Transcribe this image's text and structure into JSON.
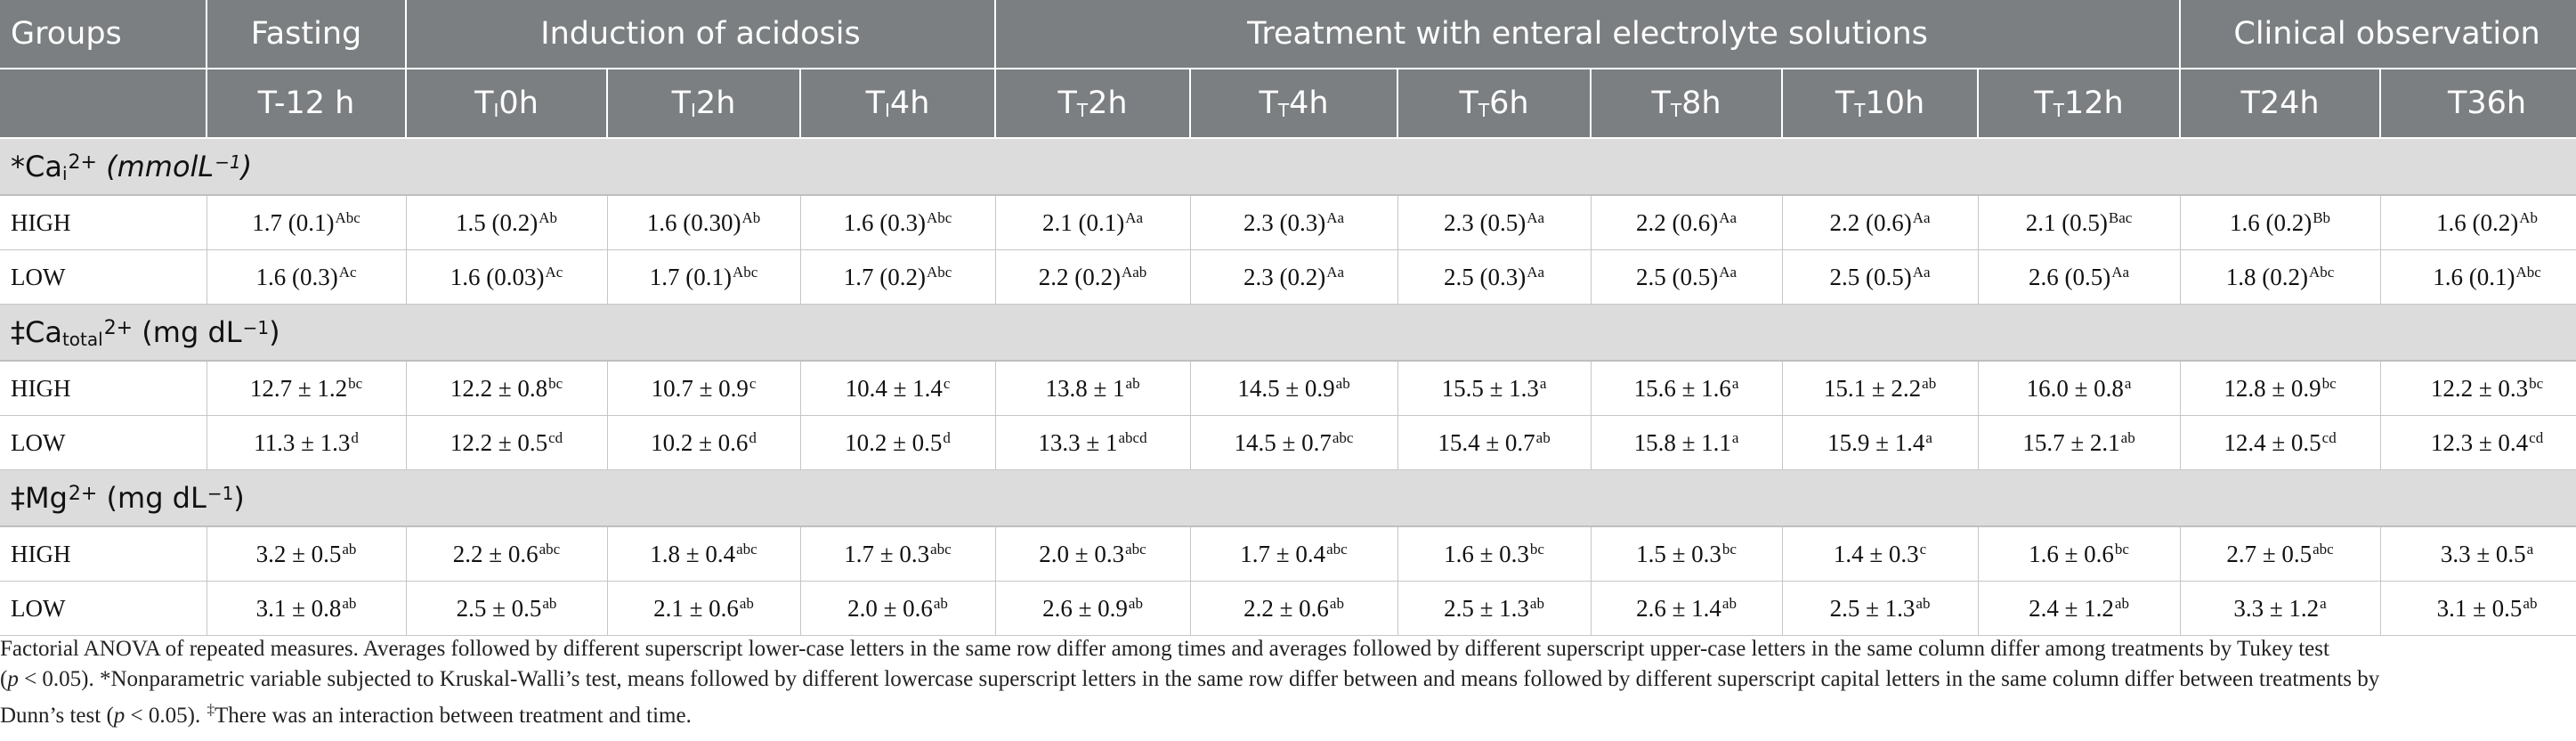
{
  "header": {
    "groups_label": "Groups",
    "phases": [
      "Fasting",
      "Induction of acidosis",
      "Treatment with enteral electrolyte solutions",
      "Clinical observation"
    ],
    "times": [
      {
        "main": "T-12 h",
        "sub": ""
      },
      {
        "main": "T",
        "sub": "I",
        "rest": "0h"
      },
      {
        "main": "T",
        "sub": "I",
        "rest": "2h"
      },
      {
        "main": "T",
        "sub": "I",
        "rest": "4h"
      },
      {
        "main": "T",
        "sub": "T",
        "rest": "2h"
      },
      {
        "main": "T",
        "sub": "T",
        "rest": "4h"
      },
      {
        "main": "T",
        "sub": "T",
        "rest": "6h"
      },
      {
        "main": "T",
        "sub": "T",
        "rest": "8h"
      },
      {
        "main": "T",
        "sub": "T",
        "rest": "10h"
      },
      {
        "main": "T",
        "sub": "T",
        "rest": "12h"
      },
      {
        "main": "T24h",
        "sub": ""
      },
      {
        "main": "T36h",
        "sub": ""
      }
    ]
  },
  "sections": [
    {
      "title_prefix": "*Ca",
      "title_sub": "i",
      "title_sup": "2+",
      "title_unit": " (mmolL",
      "title_unit_sup": "−1",
      "title_unit_end": ")",
      "rows": [
        {
          "group": "HIGH",
          "cells": [
            {
              "v": "1.7 (0.1)",
              "s": "Abc"
            },
            {
              "v": "1.5 (0.2)",
              "s": "Ab"
            },
            {
              "v": "1.6 (0.30)",
              "s": "Ab"
            },
            {
              "v": "1.6 (0.3)",
              "s": "Abc"
            },
            {
              "v": "2.1 (0.1)",
              "s": "Aa"
            },
            {
              "v": "2.3 (0.3)",
              "s": "Aa"
            },
            {
              "v": "2.3 (0.5)",
              "s": "Aa"
            },
            {
              "v": "2.2 (0.6)",
              "s": "Aa"
            },
            {
              "v": "2.2 (0.6)",
              "s": "Aa"
            },
            {
              "v": "2.1 (0.5)",
              "s": "Bac"
            },
            {
              "v": "1.6 (0.2)",
              "s": "Bb"
            },
            {
              "v": "1.6 (0.2)",
              "s": "Ab"
            }
          ]
        },
        {
          "group": "LOW",
          "cells": [
            {
              "v": "1.6 (0.3)",
              "s": "Ac"
            },
            {
              "v": "1.6 (0.03)",
              "s": "Ac"
            },
            {
              "v": "1.7 (0.1)",
              "s": "Abc"
            },
            {
              "v": "1.7 (0.2)",
              "s": "Abc"
            },
            {
              "v": "2.2 (0.2)",
              "s": "Aab"
            },
            {
              "v": "2.3 (0.2)",
              "s": "Aa"
            },
            {
              "v": "2.5 (0.3)",
              "s": "Aa"
            },
            {
              "v": "2.5 (0.5)",
              "s": "Aa"
            },
            {
              "v": "2.5 (0.5)",
              "s": "Aa"
            },
            {
              "v": "2.6 (0.5)",
              "s": "Aa"
            },
            {
              "v": "1.8 (0.2)",
              "s": "Abc"
            },
            {
              "v": "1.6 (0.1)",
              "s": "Abc"
            }
          ]
        }
      ]
    },
    {
      "title_prefix": "‡Ca",
      "title_sub": "total",
      "title_sup": "2+",
      "title_unit": " (mg dL",
      "title_unit_sup": "−1",
      "title_unit_end": ")",
      "rows": [
        {
          "group": "HIGH",
          "cells": [
            {
              "v": "12.7 ± 1.2",
              "s": "bc"
            },
            {
              "v": "12.2 ± 0.8",
              "s": "bc"
            },
            {
              "v": "10.7 ± 0.9",
              "s": "c"
            },
            {
              "v": "10.4 ± 1.4",
              "s": "c"
            },
            {
              "v": "13.8 ± 1",
              "s": "ab"
            },
            {
              "v": "14.5 ± 0.9",
              "s": "ab"
            },
            {
              "v": "15.5 ± 1.3",
              "s": "a"
            },
            {
              "v": "15.6 ± 1.6",
              "s": "a"
            },
            {
              "v": "15.1 ± 2.2",
              "s": "ab"
            },
            {
              "v": "16.0 ± 0.8",
              "s": "a"
            },
            {
              "v": "12.8 ± 0.9",
              "s": "bc"
            },
            {
              "v": "12.2 ± 0.3",
              "s": "bc"
            }
          ]
        },
        {
          "group": "LOW",
          "cells": [
            {
              "v": "11.3 ± 1.3",
              "s": "d"
            },
            {
              "v": "12.2 ± 0.5",
              "s": "cd"
            },
            {
              "v": "10.2 ± 0.6",
              "s": "d"
            },
            {
              "v": "10.2 ± 0.5",
              "s": "d"
            },
            {
              "v": "13.3 ± 1",
              "s": "abcd"
            },
            {
              "v": "14.5 ± 0.7",
              "s": "abc"
            },
            {
              "v": "15.4 ± 0.7",
              "s": "ab"
            },
            {
              "v": "15.8 ± 1.1",
              "s": "a"
            },
            {
              "v": "15.9 ± 1.4",
              "s": "a"
            },
            {
              "v": "15.7 ± 2.1",
              "s": "ab"
            },
            {
              "v": "12.4 ± 0.5",
              "s": "cd"
            },
            {
              "v": "12.3 ± 0.4",
              "s": "cd"
            }
          ]
        }
      ]
    },
    {
      "title_prefix": "‡Mg",
      "title_sub": "",
      "title_sup": "2+",
      "title_unit": " (mg dL",
      "title_unit_sup": "−1",
      "title_unit_end": ")",
      "rows": [
        {
          "group": "HIGH",
          "cells": [
            {
              "v": "3.2 ± 0.5",
              "s": "ab"
            },
            {
              "v": "2.2 ± 0.6",
              "s": "abc"
            },
            {
              "v": "1.8 ± 0.4",
              "s": "abc"
            },
            {
              "v": "1.7 ± 0.3",
              "s": "abc"
            },
            {
              "v": "2.0 ± 0.3",
              "s": "abc"
            },
            {
              "v": "1.7 ± 0.4",
              "s": "abc"
            },
            {
              "v": "1.6 ± 0.3",
              "s": "bc"
            },
            {
              "v": "1.5 ± 0.3",
              "s": "bc"
            },
            {
              "v": "1.4 ± 0.3",
              "s": "c"
            },
            {
              "v": "1.6 ± 0.6",
              "s": "bc"
            },
            {
              "v": "2.7 ± 0.5",
              "s": "abc"
            },
            {
              "v": "3.3 ± 0.5",
              "s": "a"
            }
          ]
        },
        {
          "group": "LOW",
          "cells": [
            {
              "v": "3.1 ± 0.8",
              "s": "ab"
            },
            {
              "v": "2.5 ± 0.5",
              "s": "ab"
            },
            {
              "v": "2.1 ± 0.6",
              "s": "ab"
            },
            {
              "v": "2.0 ± 0.6",
              "s": "ab"
            },
            {
              "v": "2.6 ± 0.9",
              "s": "ab"
            },
            {
              "v": "2.2 ± 0.6",
              "s": "ab"
            },
            {
              "v": "2.5 ± 1.3",
              "s": "ab"
            },
            {
              "v": "2.6 ± 1.4",
              "s": "ab"
            },
            {
              "v": "2.5 ± 1.3",
              "s": "ab"
            },
            {
              "v": "2.4 ± 1.2",
              "s": "ab"
            },
            {
              "v": "3.3 ± 1.2",
              "s": "a"
            },
            {
              "v": "3.1 ± 0.5",
              "s": "ab"
            }
          ]
        }
      ]
    }
  ],
  "footnote": {
    "line1": "Factorial ANOVA of repeated measures. Averages followed by different superscript lower-case letters in the same row differ among times and averages followed by different superscript upper-case letters in the same column differ among treatments by Tukey test",
    "line2_open": "(",
    "line2_p": "p",
    "line2_rest": " < 0.05). *Nonparametric variable subjected to Kruskal-Walli’s test, means followed by different lowercase superscript letters in the same row differ between and means followed by different superscript capital letters in the same column differ between treatments by",
    "line3_pre": "Dunn’s test (",
    "line3_p": "p",
    "line3_rest": " < 0.05). ",
    "line3_mark": "‡",
    "line3_end": "There was an interaction between treatment and time."
  }
}
